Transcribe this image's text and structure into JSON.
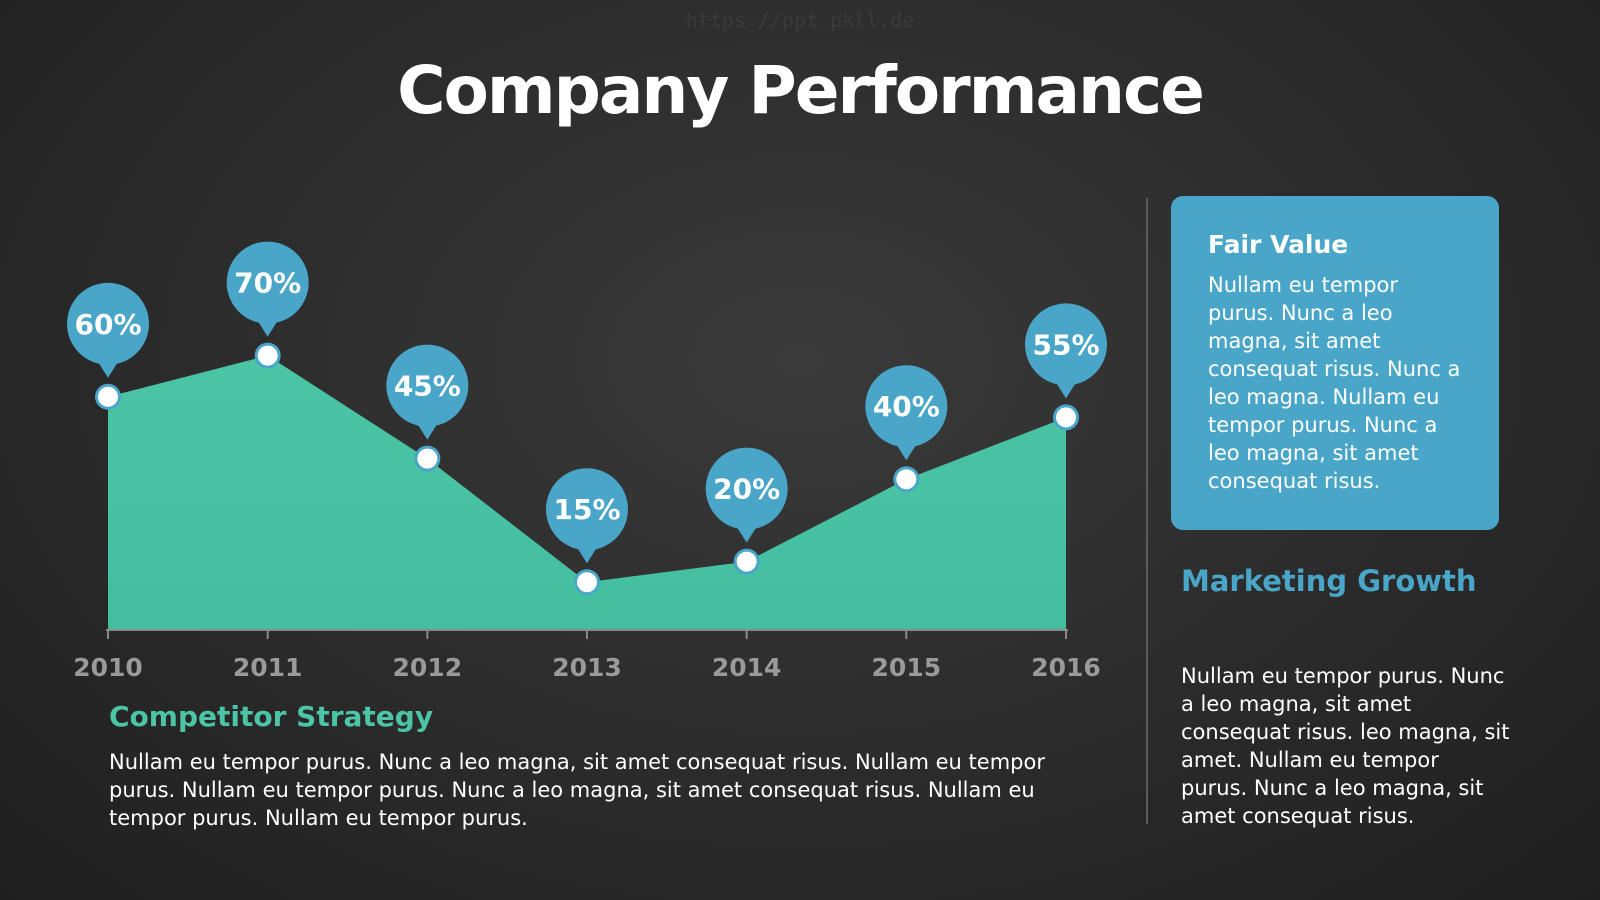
{
  "watermark": "https://ppt.pkll.de",
  "title": "Company Performance",
  "colors": {
    "area": "#43bfa0",
    "area_top": "#4cc4a6",
    "pin": "#4aa6c8",
    "axis": "#8a8a8a",
    "tick_label": "#9a9a9a",
    "accent_teal": "#4cc4a6",
    "accent_blue": "#4aa6c8"
  },
  "chart_data": {
    "type": "area",
    "categories": [
      "2010",
      "2011",
      "2012",
      "2013",
      "2014",
      "2015",
      "2016"
    ],
    "series": [
      {
        "values": [
          60,
          70,
          45,
          15,
          20,
          40,
          55
        ]
      }
    ],
    "data_labels": [
      "60%",
      "70%",
      "45%",
      "15%",
      "20%",
      "40%",
      "55%"
    ],
    "title": "",
    "xlabel": "",
    "ylabel": "",
    "grid": false,
    "legend": "none"
  },
  "fair_value": {
    "title": "Fair Value",
    "text": "Nullam eu tempor purus. Nunc a leo magna, sit amet consequat risus. Nunc a leo magna. Nullam eu tempor purus. Nunc a leo magna, sit amet consequat risus."
  },
  "marketing_growth": {
    "title": "Marketing Growth",
    "text": "Nullam eu tempor purus. Nunc a leo magna, sit amet consequat risus. leo magna, sit amet. Nullam eu tempor purus. Nunc a leo magna, sit amet consequat risus."
  },
  "competitor_strategy": {
    "title": "Competitor Strategy",
    "text": "Nullam eu tempor purus. Nunc a leo magna, sit amet consequat risus. Nullam eu tempor purus. Nullam eu tempor purus. Nunc a leo magna, sit amet consequat risus. Nullam eu tempor purus. Nullam eu tempor purus."
  }
}
